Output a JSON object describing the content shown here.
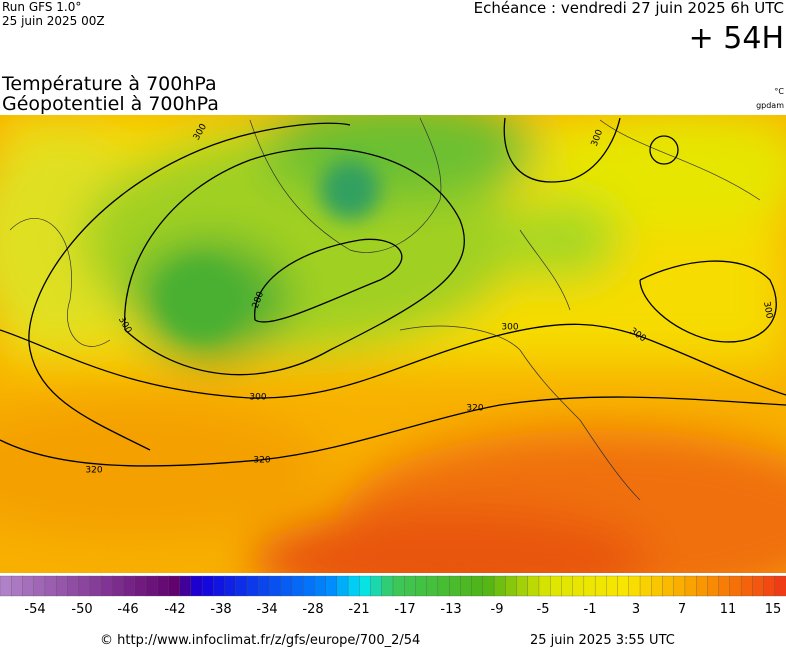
{
  "header": {
    "run": "Run GFS 1.0°",
    "date": "25 juin 2025 00Z",
    "echeance": "Echéance : vendredi 27 juin 2025 6h UTC",
    "lead": "+ 54H",
    "title_temp": "Température à 700hPa",
    "title_geo": "Géopotentiel à 700hPa",
    "unit_temp": "°C",
    "unit_geo": "gpdam"
  },
  "map": {
    "contour_labels": [
      "300",
      "300",
      "280",
      "300",
      "300",
      "320",
      "320",
      "320",
      "300",
      "300",
      "300"
    ]
  },
  "colorbar": {
    "ticks": [
      -54,
      -50,
      -46,
      -42,
      -38,
      -34,
      -28,
      -21,
      -17,
      -13,
      -9,
      -5,
      -1,
      3,
      7,
      11,
      15
    ]
  },
  "footer": {
    "source": "© http://www.infoclimat.fr/z/gfs/europe/700_2/54",
    "issued": "25 juin 2025  3:55 UTC"
  }
}
